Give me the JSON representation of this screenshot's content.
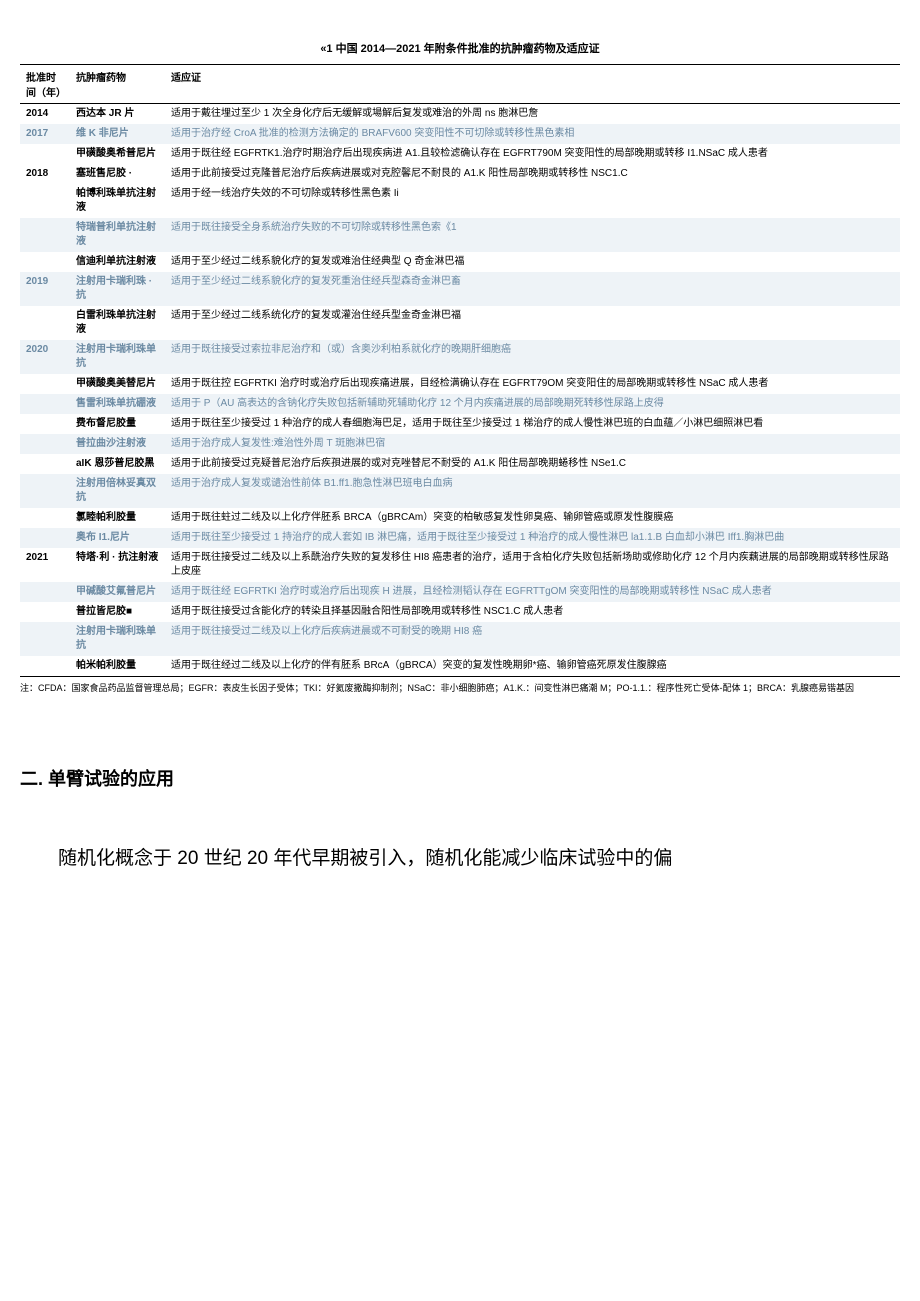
{
  "table": {
    "title": "«1 中国 2014—2021 年附条件批准的抗肿瘤药物及适应证",
    "headers": {
      "year": "批准时间（年）",
      "drug": "抗肿瘤药物",
      "indication": "适应证"
    },
    "rows": [
      {
        "year": "2014",
        "drug": "西达本 JR 片",
        "indication": "适用于戴往埋过至少 1 次全身化疗后无缓解或場解后复发或难治的外周 ns 胞淋巴詹",
        "alt": false
      },
      {
        "year": "2017",
        "drug": "维 K 非尼片",
        "indication": "适用于治疗经 CroA 批准的检测方法确定的 BRAFV600 突变阳性不可切除或转移性黑色素相",
        "alt": true
      },
      {
        "year": "",
        "drug": "甲磺酸奥希普尼片",
        "indication": "适用于既往经 EGFRTK1.治疗时期治疗后出现疾病进 A1.且较检滤确认存在 EGFRT790M 突变阳性的局部晚期或转移 I1.NSaC 成人患者",
        "alt": false
      },
      {
        "year": "2018",
        "drug": "塞班售尼胶 ·",
        "indication": "适用于此前接受过克隆普尼治疗后疾病进展或对克腔馨尼不耐艮的 A1.K 阳性局部晚期或转移性 NSC1.C",
        "alt": false
      },
      {
        "year": "",
        "drug": "帕博利珠单抗注射液",
        "indication": "适用于经一线治疗失效的不可切除或转移性黑色素 Ii",
        "alt": false
      },
      {
        "year": "",
        "drug": "特瑞普利单抗注射液",
        "indication": "适用于既往接受全身系統治疗失败的不可切除或转移性黑色索《1",
        "alt": true
      },
      {
        "year": "",
        "drug": "信迪利单抗注射液",
        "indication": "适用于至少经过二线系貌化疗的复发或难治住经典型 Q 奇金淋巴福",
        "alt": false
      },
      {
        "year": "2019",
        "drug": "注射用卡瑞利珠 · 抗",
        "indication": "适用于至少经过二线系貌化疗的复发死重治住经兵型森奇金淋巴畜",
        "alt": true
      },
      {
        "year": "",
        "drug": "白雷利珠单抗注射液",
        "indication": "适用于至少经过二线系统化疗的复发或灌治住经兵型金奇金淋巴福",
        "alt": false
      },
      {
        "year": "2020",
        "drug": "注射用卡瑞利珠单抗",
        "indication": "适用于既往接受过索拉非尼治疗和（或）含奥沙利柏系就化疗的晚期肝细胞癌",
        "alt": true
      },
      {
        "year": "",
        "drug": "甲磺酸奥美替尼片",
        "indication": "适用于既往控 EGFRTKI 治疗时或治疗后出现疾痛进展，目经检满确认存在 EGFRT79OM 突变阳住的局部晚期或转移性 NSaC 成人患者",
        "alt": false
      },
      {
        "year": "",
        "drug": "售雷利珠单抗硼液",
        "indication": "适用于 P（AU 高表达的含钠化疗失败包括新辅助死辅助化疗 12 个月内疾痛进展的局部晚期死转移性尿路上皮得",
        "alt": true
      },
      {
        "year": "",
        "drug": "费布督尼胶量",
        "indication": "适用于既往至少接受过 1 种治疗的成人春细胞海巴足，适用于既往至少接受过 1 梯治疗的成人慢性淋巴班的白血蘊／小淋巴细照淋巴看",
        "alt": false
      },
      {
        "year": "",
        "drug": "普拉曲沙注射液",
        "indication": "适用于治疗成人复发性:难治性外周 T 斑胞淋巴宿",
        "alt": true
      },
      {
        "year": "",
        "drug": "aIK 恩莎普尼胶黑",
        "indication": "适用于此前接受过克疑普尼治疗后疾孭进展的或对克唑替尼不耐受的 A1.K 阳住局部晚期蜷移性 NSe1.C",
        "alt": false
      },
      {
        "year": "",
        "drug": "注射用倍林妥真双抗",
        "indication": "适用于治疗成人复发或谴治性前体 B1.ff1.胞急性淋巴班电白血病",
        "alt": true
      },
      {
        "year": "",
        "drug": "氯睦帕利胶量",
        "indication": "适用于既往蛀过二线及以上化疗伴胚系 BRCA（gBRCAm）突变的柏敏感复发性卵臭癌、输卵管癌或原发性腹膜癌",
        "alt": false
      },
      {
        "year": "",
        "drug": "奥布 I1.尼片",
        "indication": "适用于既往至少接受过 1 持治疗的成人套如 IB 淋巴痛，适用于既往至少接受过 1 种治疗的成人慢性淋巴 la1.1.B 白血却小淋巴 Iff1.胸淋巴曲",
        "alt": true
      },
      {
        "year": "2021",
        "drug": "特塔·利 · 抗注射液",
        "indication": "适用于既往接受过二线及以上系酰治疗失败的复发移住 HI8 癌患者的治疗，适用于含柏化疗失败包括新场助或修助化疗 12 个月内疾藕进展的局部晚期或转移性尿路上皮座",
        "alt": false
      },
      {
        "year": "",
        "drug": "甲碱酸艾氟普尼片",
        "indication": "适用于既往经 EGFRTKI 治疗时或治疗后出现疾 H 进展，且经检测韬认存在 EGFRTTgOM 突变阳性的局部晚期或转移性 NSaC 成人患者",
        "alt": true
      },
      {
        "year": "",
        "drug": "普拉皆尼胶■",
        "indication": "适用于既往接受过含能化疗的转染且择基因融合阳性局部晚用或转移性 NSC1.C 成人患者",
        "alt": false
      },
      {
        "year": "",
        "drug": "注射用卡瑞利珠单抗",
        "indication": "适用于既往接受过二线及以上化疗后疾病进晨或不可耐受的晚期 HI8 癌",
        "alt": true
      },
      {
        "year": "",
        "drug": "帕米帕利胶量",
        "indication": "适用于既往经过二线及以上化疗的伴有胚系 BRcA（gBRCA）突变的复发性晚期卵*癌、输卵管癌死原发住腹腺癌",
        "alt": false
      }
    ],
    "note": "注：CFDA：国家食品药品监督管理总局；EGFR：表皮生长因子受体；TKI：好氦废撒酶抑制剂；NSaC：非小细胞肺癌；A1.K.：间变性淋巴痛潮 M；PO-1.1.：程序性死亡受体-配体 1；BRCA：乳腺癌易锴基因"
  },
  "section": {
    "heading": "二. 单臂试验的应用"
  },
  "paragraph": "随机化概念于 20 世纪 20 年代早期被引入，随机化能减少临床试验中的偏"
}
